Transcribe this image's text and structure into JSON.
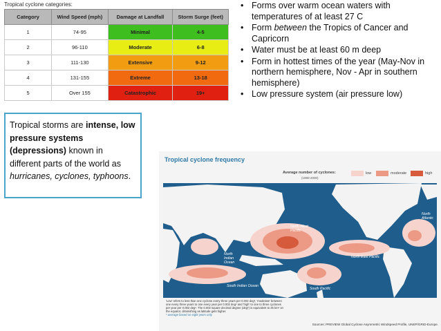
{
  "table": {
    "caption": "Tropical cyclone categories:",
    "headers": [
      "Category",
      "Wind Speed (mph)",
      "Damage at Landfall",
      "Storm Surge (feet)"
    ],
    "rows": [
      {
        "category": "1",
        "wind": "74-95",
        "damage": "Minimal",
        "surge": "4-5",
        "color": "#3fbf1f"
      },
      {
        "category": "2",
        "wind": "96-110",
        "damage": "Moderate",
        "surge": "6-8",
        "color": "#e8ee13"
      },
      {
        "category": "3",
        "wind": "111-130",
        "damage": "Extensive",
        "surge": "9-12",
        "color": "#f29c12"
      },
      {
        "category": "4",
        "wind": "131-155",
        "damage": "Extreme",
        "surge": "13-18",
        "color": "#f26a10"
      },
      {
        "category": "5",
        "wind": "Over 155",
        "damage": "Catastrophic",
        "surge": "19+",
        "color": "#e02010"
      }
    ]
  },
  "bullets": [
    {
      "text": "Forms over warm ocean waters with temperatures of at least 27  C"
    },
    {
      "before": "Form ",
      "em": "between",
      "after": " the Tropics of Cancer and Capricorn"
    },
    {
      "text": "Water must be at least 60 m deep"
    },
    {
      "text": "Form in hottest times of the year (May-Nov in northern hemisphere, Nov - Apr in southern hemisphere)"
    },
    {
      "text": "Low pressure system (air pressure low)"
    }
  ],
  "storm_box": {
    "intro": "Tropical storms are ",
    "bold1": "intense, low pressure systems (depressions)",
    "mid": " known in different parts of the world as ",
    "italic": "hurricanes, cyclones, typhoons",
    "end": "."
  },
  "map": {
    "title": "Tropical cyclone frequency",
    "legend_title": "Average number of cyclones:",
    "legend_years": "(1980-2000)",
    "legend": [
      {
        "label": "low",
        "color": "#f6d3cc"
      },
      {
        "label": "moderate",
        "color": "#ec9a85"
      },
      {
        "label": "high",
        "color": "#d65a3c"
      }
    ],
    "ocean_color": "#1f5d8c",
    "land_color": "#f3f3f3",
    "regions": [
      "North West Pacific",
      "North Atlantic",
      "North East Pacific",
      "North Indian Ocean",
      "South Indian Ocean",
      "South Pacific"
    ],
    "note": "'Low' refers to less than one cyclone every three years per 0.002 deg², 'moderate' between one every three years to one every year per 0.002 deg² and 'high' to one to three cyclones per year per 0.002 deg². The 0.002 square decimal degree (deg²) is equivalent to 25 km² on the equator, diminishing as latitude gets higher.",
    "note_footnote": "* average based on eight years only.",
    "source": "Sources: PREVIEW Global Cyclone Asymmetric Windspeed Profile, UNEP/GRID-Europe."
  }
}
